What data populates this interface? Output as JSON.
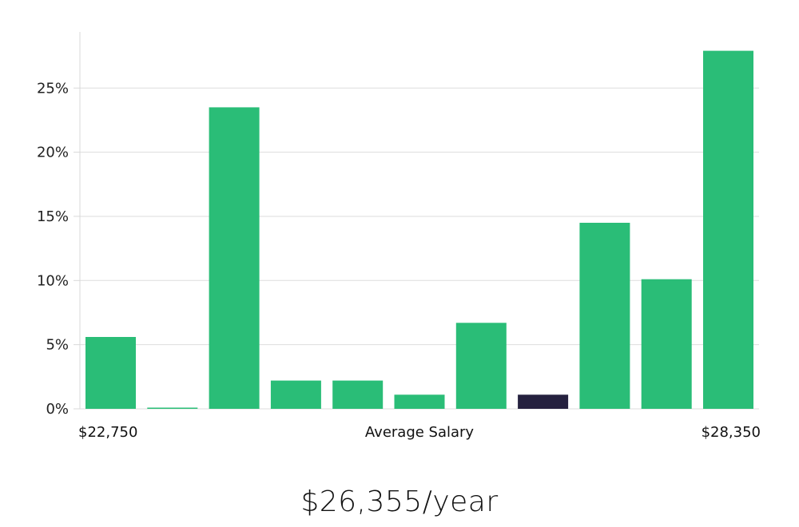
{
  "chart_data": {
    "type": "bar",
    "values": [
      5.6,
      0.05,
      23.5,
      2.2,
      2.2,
      1.1,
      6.7,
      1.1,
      14.5,
      10.1,
      27.9
    ],
    "highlight_index": 7,
    "colors": {
      "bar": "#2abd77",
      "highlight": "#25213f",
      "grid": "#dddddd",
      "axis": "#d8d8d8"
    },
    "ylim": [
      0,
      29.5
    ],
    "y_ticks": [
      0,
      5,
      10,
      15,
      20,
      25
    ],
    "y_tick_labels": [
      "0%",
      "5%",
      "10%",
      "15%",
      "20%",
      "25%"
    ],
    "grid": true,
    "x_min_label": "$22,750",
    "x_max_label": "$28,350",
    "xlabel": "Average Salary"
  },
  "summary": {
    "salary_text": "$26,355/year"
  }
}
